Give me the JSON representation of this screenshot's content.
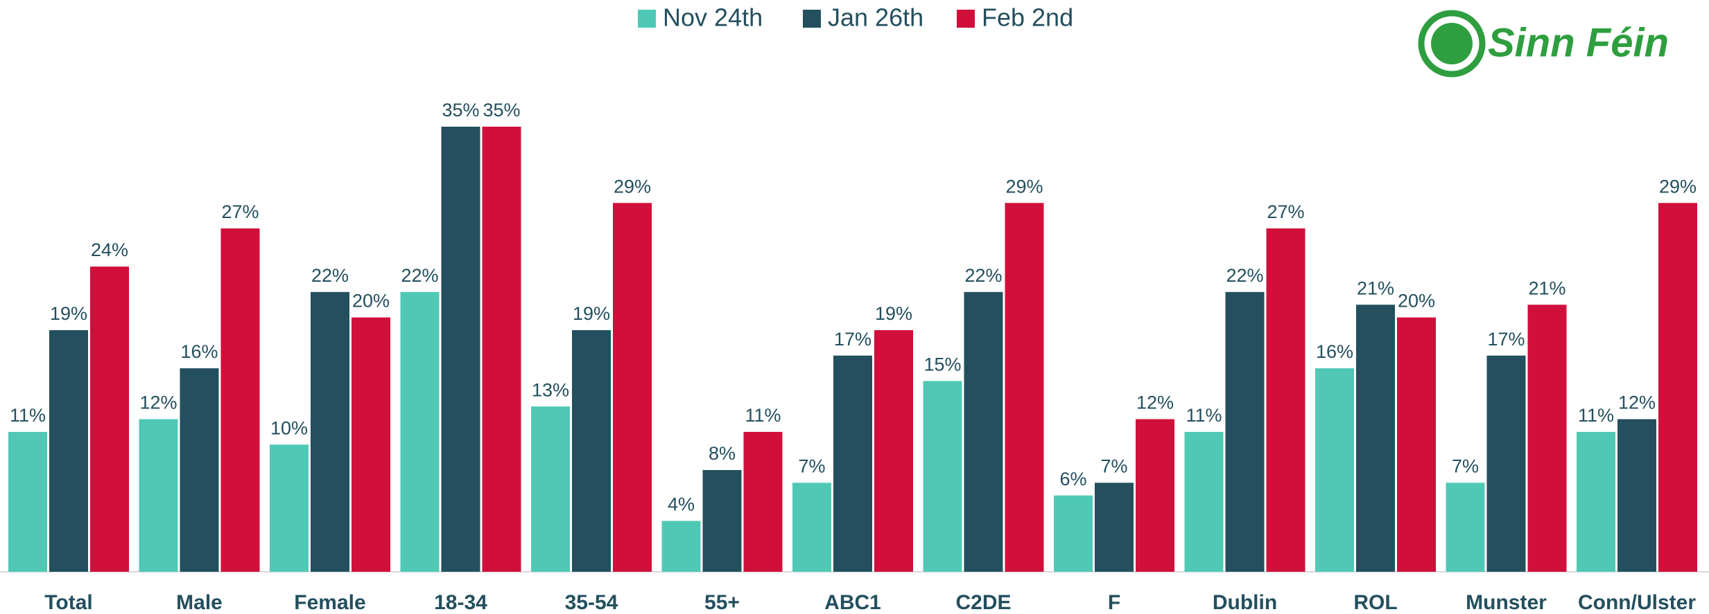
{
  "logo": "Sinn Féin",
  "chart_data": {
    "type": "bar",
    "categories": [
      "Total",
      "Male",
      "Female",
      "18-34",
      "35-54",
      "55+",
      "ABC1",
      "C2DE",
      "F",
      "Dublin",
      "ROL",
      "Munster",
      "Conn/Ulster"
    ],
    "series": [
      {
        "name": "Nov 24th",
        "color": "#4fc9b5",
        "values": [
          11,
          12,
          10,
          22,
          13,
          4,
          7,
          15,
          6,
          11,
          16,
          7,
          11
        ],
        "value_labels": [
          "11%",
          "12%",
          "10%",
          "22%",
          "13%",
          "4%",
          "7%",
          "15%",
          "6%",
          "11%",
          "16%",
          "7%",
          "11%"
        ]
      },
      {
        "name": "Jan 26th",
        "color": "#234f5e",
        "values": [
          19,
          16,
          22,
          35,
          19,
          8,
          17,
          22,
          7,
          22,
          21,
          17,
          12
        ],
        "value_labels": [
          "19%",
          "16%",
          "22%",
          "35%",
          "19%",
          "8%",
          "17%",
          "22%",
          "7%",
          "22%",
          "21%",
          "17%",
          "12%"
        ]
      },
      {
        "name": "Feb 2nd",
        "color": "#d0103a",
        "values": [
          24,
          27,
          20,
          35,
          29,
          11,
          19,
          29,
          12,
          27,
          20,
          21,
          29
        ],
        "value_labels": [
          "24%",
          "27%",
          "20%",
          "35%",
          "29%",
          "11%",
          "19%",
          "29%",
          "12%",
          "27%",
          "20%",
          "21%",
          "29%"
        ]
      }
    ],
    "legend": "top"
  }
}
